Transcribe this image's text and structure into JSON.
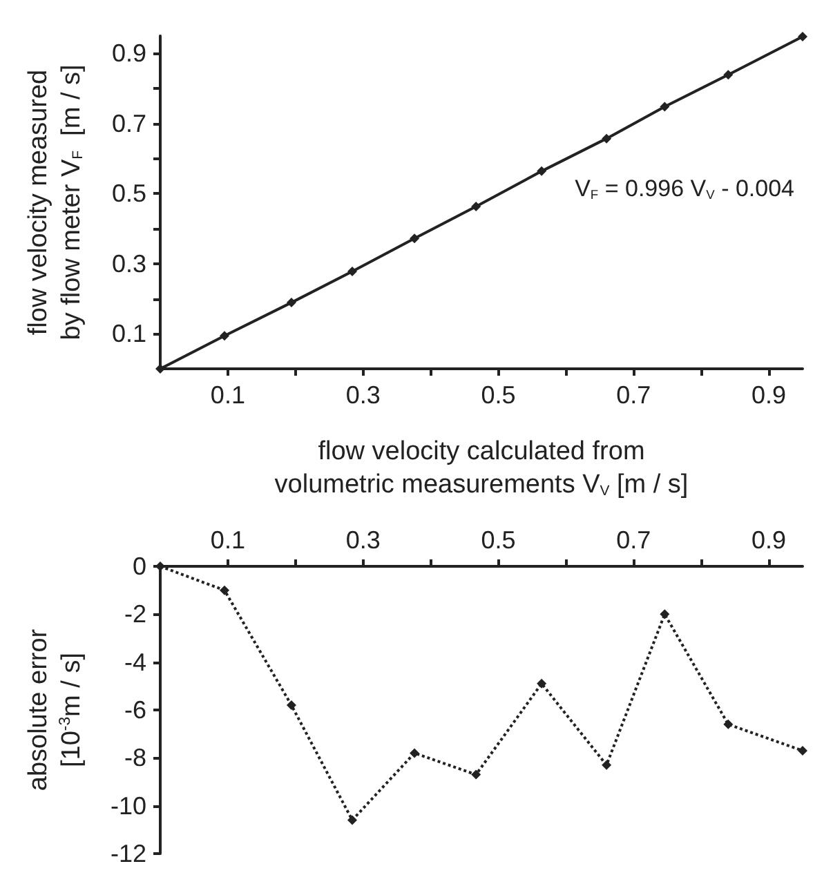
{
  "chart_data": [
    {
      "type": "line",
      "ylabel": "flow velocity measured\nby flow meter V$_{F}$  [m / s]",
      "xlabel": "flow velocity calculated from\nvolumetric measurements V$_{V}$ [m / s]",
      "x": [
        0,
        0.095,
        0.194,
        0.284,
        0.376,
        0.467,
        0.564,
        0.66,
        0.746,
        0.84,
        0.95
      ],
      "series": [
        {
          "color": "#222222",
          "values": [
            0,
            0.094,
            0.189,
            0.278,
            0.372,
            0.463,
            0.564,
            0.657,
            0.748,
            0.839,
            0.948
          ]
        }
      ],
      "xlim": [
        0,
        0.95
      ],
      "ylim": [
        0,
        0.95
      ],
      "xticks": [
        0.1,
        {
          "value": 0.2,
          "label": null
        },
        0.3,
        {
          "value": 0.4,
          "label": null
        },
        0.5,
        {
          "value": 0.6,
          "label": null
        },
        0.7,
        {
          "value": 0.8,
          "label": null
        },
        0.9
      ],
      "yticks": [
        0.1,
        {
          "value": 0.2,
          "label": null
        },
        0.3,
        {
          "value": 0.4,
          "label": null
        },
        0.5,
        {
          "value": 0.6,
          "label": null
        },
        0.7,
        {
          "value": 0.8,
          "label": null
        },
        0.9
      ],
      "annotations": [
        "V$_{F}$ = 0.996 V$_{V}$ - 0.004"
      ],
      "marker": "diamond",
      "line_style": "solid",
      "grid": false
    },
    {
      "type": "line",
      "ylabel": "absolute error\n[10$^{-3}$m / s]",
      "x": [
        0,
        0.095,
        0.194,
        0.284,
        0.376,
        0.467,
        0.564,
        0.66,
        0.746,
        0.84,
        0.95
      ],
      "series": [
        {
          "color": "#222222",
          "values": [
            0,
            -1.0,
            -5.8,
            -10.6,
            -7.8,
            -8.7,
            -4.9,
            -8.3,
            -2.0,
            -6.6,
            -7.7
          ]
        }
      ],
      "xlim": [
        0,
        0.95
      ],
      "ylim": [
        -12,
        0
      ],
      "xticks": [
        0.1,
        {
          "value": 0.2,
          "label": null
        },
        0.3,
        {
          "value": 0.4,
          "label": null
        },
        0.5,
        {
          "value": 0.6,
          "label": null
        },
        0.7,
        {
          "value": 0.8,
          "label": null
        },
        0.9
      ],
      "yticks": [
        -12,
        -10,
        -8,
        -6,
        -4,
        -2,
        0
      ],
      "marker": "diamond",
      "line_style": "dotted",
      "grid": false
    }
  ]
}
